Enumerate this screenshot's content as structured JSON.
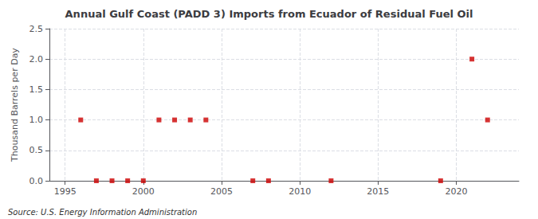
{
  "chart_data": {
    "type": "scatter",
    "title": "Annual Gulf Coast (PADD 3) Imports from Ecuador of Residual Fuel Oil",
    "ylabel": "Thousand Barrels per Day",
    "annotations": [
      "Source: U.S. Energy Information Administration"
    ],
    "x": [
      1996,
      1997,
      1998,
      1999,
      2000,
      2001,
      2002,
      2003,
      2004,
      2007,
      2008,
      2012,
      2019,
      2021,
      2022
    ],
    "values": [
      1.0,
      0.0,
      0.0,
      0.0,
      0.0,
      1.0,
      1.0,
      1.0,
      1.0,
      0.0,
      0.0,
      0.0,
      0.0,
      2.0,
      1.0
    ],
    "color": "#cc0000",
    "marker": "square",
    "xlim": [
      1994,
      2024
    ],
    "xticks": [
      1995,
      2000,
      2005,
      2010,
      2015,
      2020
    ],
    "ylim": [
      0.0,
      2.5
    ],
    "yticks": [
      {
        "value": 0.0,
        "label": "0.0"
      },
      0.5,
      {
        "value": 1.0,
        "label": "1.0"
      },
      1.5,
      {
        "value": 2.0,
        "label": "2.0"
      },
      2.5
    ],
    "grid": true
  }
}
